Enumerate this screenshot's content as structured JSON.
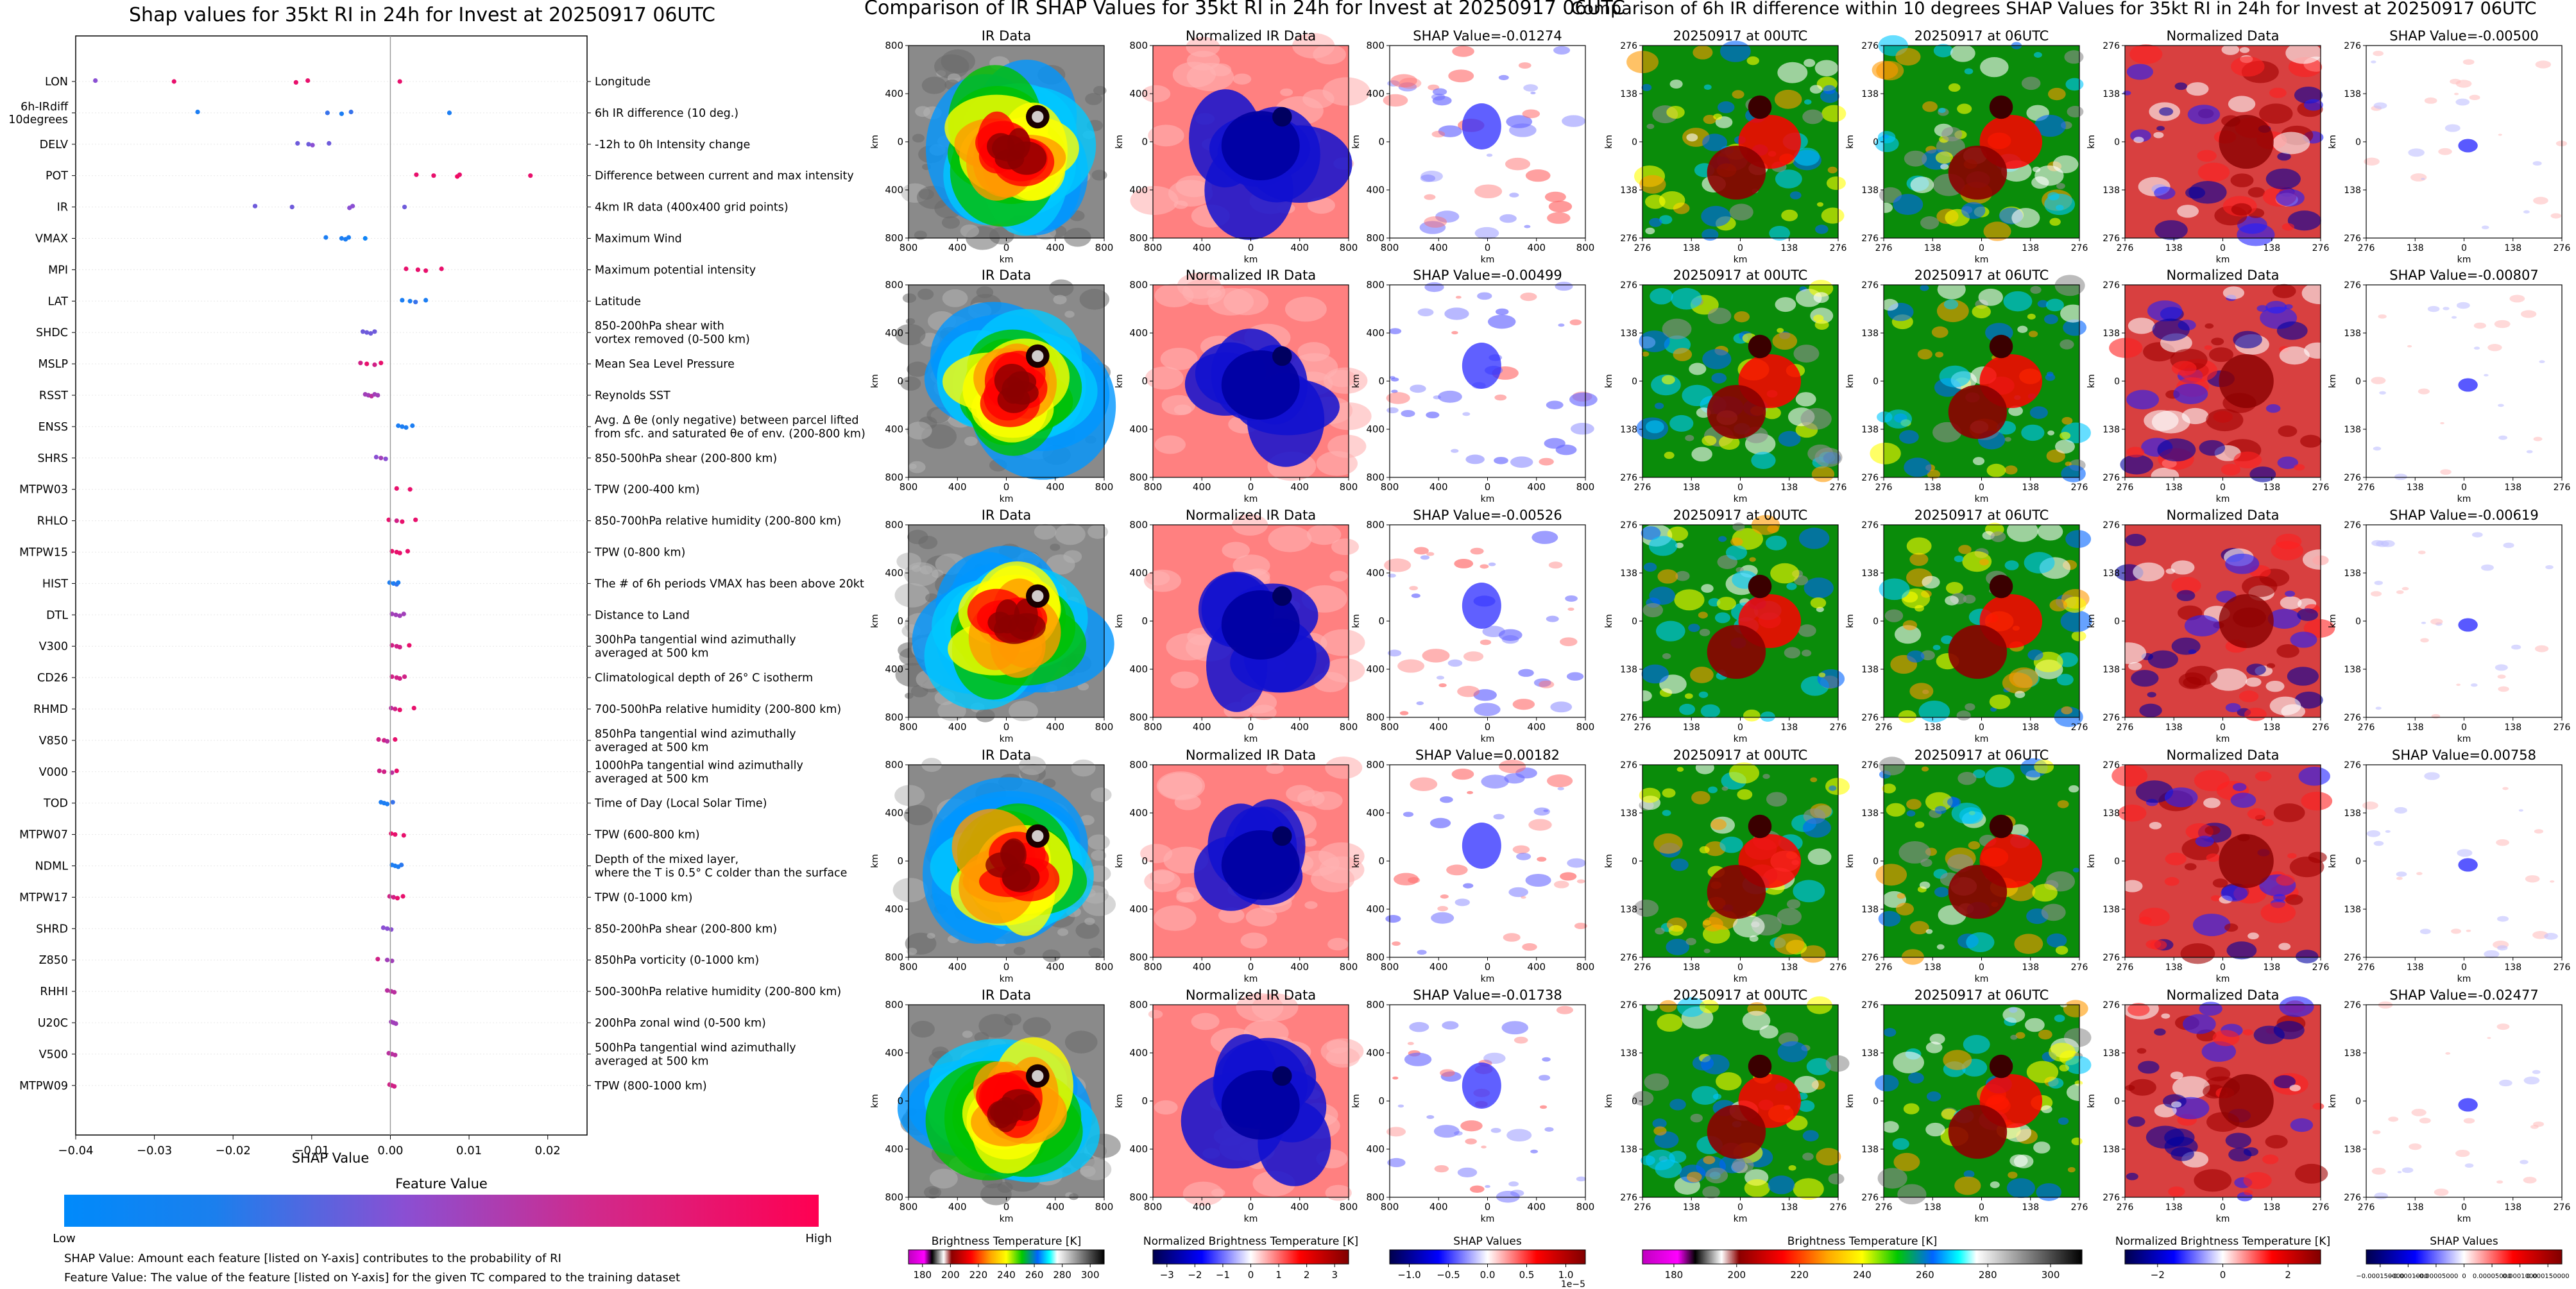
{
  "left_panel": {
    "title": "Shap values for 35kt RI in 24h for Invest at 20250917 06UTC",
    "xlabel": "SHAP Value",
    "xticks": [
      "−0.04",
      "−0.03",
      "−0.02",
      "−0.01",
      "0.00",
      "0.01",
      "0.02"
    ],
    "colorbar": {
      "title": "Feature Value",
      "low": "Low",
      "high": "High"
    },
    "note1": "SHAP Value: Amount each feature [listed on Y-axis] contributes to the probability of RI",
    "note2": "Feature Value: The value of the feature [listed on Y-axis] for the given TC compared to the training dataset",
    "colors": {
      "low": "#1e88e5",
      "high": "#ff0d57"
    }
  },
  "chart_data": [
    {
      "type": "scatter",
      "title": "Shap values for 35kt RI in 24h for Invest at 20250917 06UTC",
      "xlabel": "SHAP Value",
      "xlim": [
        -0.04,
        0.025
      ],
      "features": [
        {
          "name": [
            "LON"
          ],
          "desc": [
            "Longitude"
          ],
          "points": [
            [
              -0.0375,
              0.5
            ],
            [
              -0.0275,
              0.9
            ],
            [
              -0.012,
              0.9
            ],
            [
              -0.0105,
              0.9
            ],
            [
              0.0012,
              0.9
            ]
          ]
        },
        {
          "name": [
            "6h-IRdiff",
            "10degrees"
          ],
          "desc": [
            "6h IR difference (10 deg.)"
          ],
          "points": [
            [
              -0.0245,
              0.1
            ],
            [
              -0.008,
              0.2
            ],
            [
              -0.0062,
              0.1
            ],
            [
              -0.005,
              0.2
            ],
            [
              0.0075,
              0.1
            ]
          ]
        },
        {
          "name": [
            "DELV"
          ],
          "desc": [
            "-12h to 0h Intensity change"
          ],
          "points": [
            [
              -0.0118,
              0.4
            ],
            [
              -0.0104,
              0.4
            ],
            [
              -0.0099,
              0.5
            ],
            [
              -0.0078,
              0.4
            ]
          ]
        },
        {
          "name": [
            "POT"
          ],
          "desc": [
            "Difference between current and max intensity"
          ],
          "points": [
            [
              0.0033,
              0.9
            ],
            [
              0.0055,
              0.9
            ],
            [
              0.0085,
              0.95
            ],
            [
              0.0088,
              0.9
            ],
            [
              0.0178,
              0.9
            ]
          ]
        },
        {
          "name": [
            "IR"
          ],
          "desc": [
            "4km IR data (400x400 grid points)"
          ],
          "points": [
            [
              -0.0172,
              0.4
            ],
            [
              -0.0125,
              0.4
            ],
            [
              -0.0052,
              0.5
            ],
            [
              -0.0048,
              0.5
            ],
            [
              0.0018,
              0.4
            ]
          ]
        },
        {
          "name": [
            "VMAX"
          ],
          "desc": [
            "Maximum Wind"
          ],
          "points": [
            [
              -0.0082,
              0.1
            ],
            [
              -0.0062,
              0.1
            ],
            [
              -0.0057,
              0.1
            ],
            [
              -0.0053,
              0.1
            ],
            [
              -0.0032,
              0.05
            ]
          ]
        },
        {
          "name": [
            "MPI"
          ],
          "desc": [
            "Maximum potential intensity"
          ],
          "points": [
            [
              0.002,
              0.9
            ],
            [
              0.0035,
              0.9
            ],
            [
              0.0045,
              0.9
            ],
            [
              0.0065,
              0.9
            ]
          ]
        },
        {
          "name": [
            "LAT"
          ],
          "desc": [
            "Latitude"
          ],
          "points": [
            [
              0.0015,
              0.1
            ],
            [
              0.0025,
              0.1
            ],
            [
              0.0032,
              0.2
            ],
            [
              0.0045,
              0.1
            ]
          ]
        },
        {
          "name": [
            "SHDC"
          ],
          "desc": [
            "850-200hPa shear with",
            "vortex removed (0-500 km)"
          ],
          "points": [
            [
              -0.0035,
              0.4
            ],
            [
              -0.003,
              0.4
            ],
            [
              -0.0025,
              0.4
            ],
            [
              -0.002,
              0.4
            ]
          ]
        },
        {
          "name": [
            "MSLP"
          ],
          "desc": [
            "Mean Sea Level Pressure"
          ],
          "points": [
            [
              -0.0038,
              0.8
            ],
            [
              -0.003,
              0.9
            ],
            [
              -0.002,
              0.8
            ],
            [
              -0.0012,
              0.9
            ]
          ]
        },
        {
          "name": [
            "RSST"
          ],
          "desc": [
            "Reynolds SST"
          ],
          "points": [
            [
              -0.0032,
              0.6
            ],
            [
              -0.0028,
              0.6
            ],
            [
              -0.0024,
              0.7
            ],
            [
              -0.002,
              0.6
            ],
            [
              -0.0016,
              0.6
            ]
          ]
        },
        {
          "name": [
            "ENSS"
          ],
          "desc": [
            "Avg. Δ θe (only negative) between parcel lifted",
            "from sfc. and saturated θe of env. (200-800 km)"
          ],
          "points": [
            [
              0.001,
              0.1
            ],
            [
              0.0015,
              0.1
            ],
            [
              0.002,
              0.1
            ],
            [
              0.0028,
              0.1
            ]
          ]
        },
        {
          "name": [
            "SHRS"
          ],
          "desc": [
            "850-500hPa shear (200-800 km)"
          ],
          "points": [
            [
              -0.0018,
              0.5
            ],
            [
              -0.0012,
              0.6
            ],
            [
              -0.0006,
              0.5
            ]
          ]
        },
        {
          "name": [
            "MTPW03"
          ],
          "desc": [
            "TPW (200-400 km)"
          ],
          "points": [
            [
              0.0008,
              0.9
            ],
            [
              0.0025,
              0.9
            ]
          ]
        },
        {
          "name": [
            "RHLO"
          ],
          "desc": [
            "850-700hPa relative humidity (200-800 km)"
          ],
          "points": [
            [
              -0.0002,
              0.9
            ],
            [
              0.0008,
              0.8
            ],
            [
              0.0015,
              0.9
            ],
            [
              0.0032,
              0.9
            ]
          ]
        },
        {
          "name": [
            "MTPW15"
          ],
          "desc": [
            "TPW (0-800 km)"
          ],
          "points": [
            [
              0.0002,
              0.9
            ],
            [
              0.0008,
              0.9
            ],
            [
              0.0012,
              0.9
            ],
            [
              0.0022,
              0.9
            ]
          ]
        },
        {
          "name": [
            "HIST"
          ],
          "desc": [
            "The # of 6h periods VMAX has been above 20kt"
          ],
          "points": [
            [
              -0.0001,
              0.1
            ],
            [
              0.0004,
              0.1
            ],
            [
              0.0008,
              0.2
            ],
            [
              0.001,
              0.1
            ]
          ]
        },
        {
          "name": [
            "DTL"
          ],
          "desc": [
            "Distance to Land"
          ],
          "points": [
            [
              0.0002,
              0.6
            ],
            [
              0.0007,
              0.6
            ],
            [
              0.0012,
              0.6
            ],
            [
              0.0017,
              0.6
            ]
          ]
        },
        {
          "name": [
            "V300"
          ],
          "desc": [
            "300hPa tangential wind azimuthally",
            "averaged at 500 km"
          ],
          "points": [
            [
              0.0002,
              0.8
            ],
            [
              0.0008,
              0.8
            ],
            [
              0.0012,
              0.8
            ],
            [
              0.0024,
              0.9
            ]
          ]
        },
        {
          "name": [
            "CD26"
          ],
          "desc": [
            "Climatological depth of 26° C isotherm"
          ],
          "points": [
            [
              0.0002,
              0.8
            ],
            [
              0.0008,
              0.8
            ],
            [
              0.0012,
              0.8
            ],
            [
              0.0018,
              0.8
            ]
          ]
        },
        {
          "name": [
            "RHMD"
          ],
          "desc": [
            "700-500hPa relative humidity (200-800 km)"
          ],
          "points": [
            [
              0.0001,
              0.7
            ],
            [
              0.0006,
              0.8
            ],
            [
              0.0012,
              0.9
            ],
            [
              0.003,
              0.9
            ]
          ]
        },
        {
          "name": [
            "V850"
          ],
          "desc": [
            "850hPa tangential wind azimuthally",
            "averaged at 500 km"
          ],
          "points": [
            [
              -0.0015,
              0.8
            ],
            [
              -0.0008,
              0.8
            ],
            [
              -0.0004,
              0.7
            ],
            [
              0.0006,
              0.9
            ]
          ]
        },
        {
          "name": [
            "V000"
          ],
          "desc": [
            "1000hPa tangential wind azimuthally",
            "averaged at 500 km"
          ],
          "points": [
            [
              -0.0014,
              0.8
            ],
            [
              -0.0008,
              0.8
            ],
            [
              0.0002,
              0.7
            ],
            [
              0.0008,
              0.9
            ]
          ]
        },
        {
          "name": [
            "TOD"
          ],
          "desc": [
            "Time of Day (Local Solar Time)"
          ],
          "points": [
            [
              -0.0012,
              0.1
            ],
            [
              -0.0008,
              0.1
            ],
            [
              -0.0004,
              0.1
            ],
            [
              0.0003,
              0.2
            ]
          ]
        },
        {
          "name": [
            "MTPW07"
          ],
          "desc": [
            "TPW (600-800 km)"
          ],
          "points": [
            [
              0.0001,
              0.9
            ],
            [
              0.0006,
              0.9
            ],
            [
              0.0017,
              0.9
            ]
          ]
        },
        {
          "name": [
            "NDML"
          ],
          "desc": [
            "Depth of the mixed layer,",
            "where the T is 0.5° C colder than the surface"
          ],
          "points": [
            [
              0.0002,
              0.1
            ],
            [
              0.0006,
              0.1
            ],
            [
              0.001,
              0.1
            ],
            [
              0.0014,
              0.15
            ]
          ]
        },
        {
          "name": [
            "MTPW17"
          ],
          "desc": [
            "TPW (0-1000 km)"
          ],
          "points": [
            [
              -0.0001,
              0.8
            ],
            [
              0.0004,
              0.8
            ],
            [
              0.0009,
              0.9
            ],
            [
              0.0016,
              0.9
            ]
          ]
        },
        {
          "name": [
            "SHRD"
          ],
          "desc": [
            "850-200hPa shear (200-800 km)"
          ],
          "points": [
            [
              -0.0009,
              0.5
            ],
            [
              -0.0004,
              0.5
            ],
            [
              0.0001,
              0.5
            ]
          ]
        },
        {
          "name": [
            "Z850"
          ],
          "desc": [
            "850hPa vorticity (0-1000 km)"
          ],
          "points": [
            [
              -0.0016,
              0.8
            ],
            [
              -0.0004,
              0.6
            ],
            [
              0.0002,
              0.6
            ]
          ]
        },
        {
          "name": [
            "RHHI"
          ],
          "desc": [
            "500-300hPa relative humidity (200-800 km)"
          ],
          "points": [
            [
              -0.0004,
              0.7
            ],
            [
              0.0001,
              0.7
            ],
            [
              0.0005,
              0.7
            ]
          ]
        },
        {
          "name": [
            "U20C"
          ],
          "desc": [
            "200hPa zonal wind (0-500 km)"
          ],
          "points": [
            [
              0.0001,
              0.6
            ],
            [
              0.0004,
              0.6
            ],
            [
              0.0007,
              0.6
            ]
          ]
        },
        {
          "name": [
            "V500"
          ],
          "desc": [
            "500hPa tangential wind azimuthally",
            "averaged at 500 km"
          ],
          "points": [
            [
              -0.0002,
              0.7
            ],
            [
              0.0002,
              0.7
            ],
            [
              0.0006,
              0.7
            ]
          ]
        },
        {
          "name": [
            "MTPW09"
          ],
          "desc": [
            "TPW (800-1000 km)"
          ],
          "points": [
            [
              -0.0001,
              0.8
            ],
            [
              0.0002,
              0.8
            ],
            [
              0.0005,
              0.8
            ]
          ]
        }
      ]
    },
    {
      "type": "heatmap",
      "title": "Comparison of IR SHAP Values for 35kt RI in 24h for Invest at 20250917 06UTC",
      "column_titles": [
        "IR Data",
        "Normalized IR Data"
      ],
      "shap_titles": [
        "SHAP Value=-0.01274",
        "SHAP Value=-0.00499",
        "SHAP Value=-0.00526",
        "SHAP Value=0.00182",
        "SHAP Value=-0.01738"
      ],
      "axis_label": "km",
      "yticks": [
        "800",
        "400",
        "0",
        "400",
        "800"
      ],
      "xticks": [
        "800",
        "400",
        "0",
        "400",
        "800"
      ],
      "colorbars": [
        {
          "label": "Brightness Temperature [K]",
          "ticks": [
            "180",
            "200",
            "220",
            "240",
            "260",
            "280",
            "300"
          ],
          "extra": ""
        },
        {
          "label": "Normalized Brightness Temperature [K]",
          "ticks": [
            "−3",
            "−2",
            "−1",
            "0",
            "1",
            "2",
            "3"
          ],
          "extra": ""
        },
        {
          "label": "SHAP Values",
          "ticks": [
            "−1.0",
            "−0.5",
            "0.0",
            "0.5",
            "1.0"
          ],
          "extra": "1e−5"
        }
      ]
    },
    {
      "type": "heatmap",
      "title": "Comparison of 6h IR difference within 10 degrees SHAP Values for 35kt RI in 24h for Invest at 20250917 06UTC",
      "column_titles": [
        "20250917 at 00UTC",
        "20250917 at 06UTC",
        "Normalized Data"
      ],
      "shap_titles": [
        "SHAP Value=-0.00500",
        "SHAP Value=-0.00807",
        "SHAP Value=-0.00619",
        "SHAP Value=0.00758",
        "SHAP Value=-0.02477"
      ],
      "axis_label": "km",
      "yticks": [
        "276",
        "138",
        "0",
        "138",
        "276"
      ],
      "xticks": [
        "276",
        "138",
        "0",
        "138",
        "276"
      ],
      "colorbars": [
        {
          "label": "Brightness Temperature [K]",
          "ticks": [
            "180",
            "200",
            "220",
            "240",
            "260",
            "280",
            "300"
          ],
          "extra": ""
        },
        {
          "label": "Normalized Brightness Temperature [K]",
          "ticks": [
            "−2",
            "0",
            "2"
          ],
          "extra": ""
        },
        {
          "label": "SHAP Values",
          "ticks": [
            "−0.000150000",
            "−0.0001000",
            "−0.00005000",
            "0",
            "0.00005000",
            "0.0001000",
            "0.000150000"
          ],
          "extra": ""
        }
      ]
    }
  ]
}
